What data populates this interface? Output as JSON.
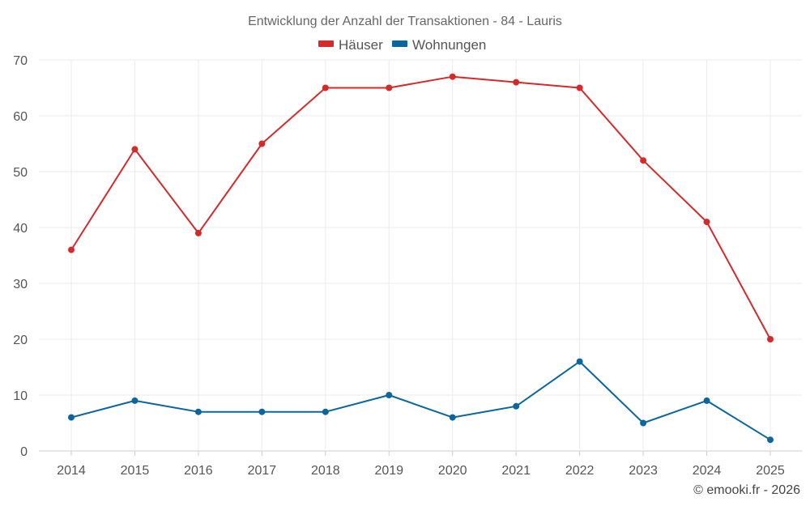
{
  "chart_data": {
    "type": "line",
    "title": "Entwicklung der Anzahl der Transaktionen - 84 - Lauris",
    "categories": [
      "2014",
      "2015",
      "2016",
      "2017",
      "2018",
      "2019",
      "2020",
      "2021",
      "2022",
      "2023",
      "2024",
      "2025"
    ],
    "series": [
      {
        "name": "Häuser",
        "color": "#d62a2a",
        "values": [
          36,
          54,
          39,
          55,
          65,
          65,
          67,
          66,
          65,
          52,
          41,
          20
        ]
      },
      {
        "name": "Wohnungen",
        "color": "#0b66a0",
        "values": [
          6,
          9,
          7,
          7,
          7,
          10,
          6,
          8,
          16,
          5,
          9,
          2
        ]
      }
    ],
    "yticks": [
      0,
      10,
      20,
      30,
      40,
      50,
      60,
      70
    ],
    "ylim": [
      0,
      70
    ],
    "grid": true,
    "legend_position": "top-center",
    "xlabel": "",
    "ylabel": ""
  },
  "credit": "© emooki.fr - 2026"
}
